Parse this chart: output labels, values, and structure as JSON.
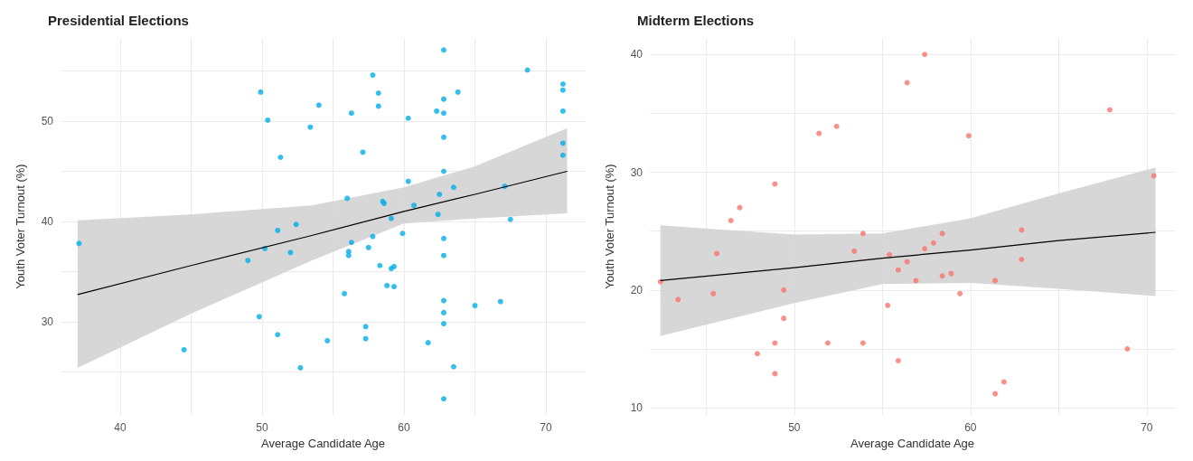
{
  "chart_data": [
    {
      "type": "scatter",
      "title": "Presidential Elections",
      "xlabel": "Average Candidate Age",
      "ylabel": "Youth Voter Turnout (%)",
      "xlim": [
        35.8,
        72.8
      ],
      "ylim": [
        20.7,
        58.3
      ],
      "xticks": [
        40,
        {
          "value": 45,
          "label": null
        },
        50,
        {
          "value": 55,
          "label": null
        },
        60,
        {
          "value": 65,
          "label": null
        },
        70
      ],
      "yticks": [
        {
          "value": 25,
          "label": null
        },
        30,
        {
          "value": 35,
          "label": null
        },
        40,
        {
          "value": 45,
          "label": null
        },
        50,
        {
          "value": 55,
          "label": null
        }
      ],
      "grid": true,
      "series": [
        {
          "marker": "circle",
          "color": "#00aee8",
          "x": [
            37.1,
            44.5,
            49.0,
            49.8,
            49.9,
            50.2,
            50.4,
            51.1,
            51.1,
            51.3,
            52.0,
            52.4,
            52.7,
            53.4,
            54.0,
            54.6,
            55.8,
            56.0,
            56.1,
            56.1,
            56.3,
            56.3,
            57.1,
            57.3,
            57.3,
            57.5,
            57.8,
            57.8,
            58.2,
            58.2,
            58.3,
            58.5,
            58.6,
            58.8,
            59.1,
            59.1,
            59.3,
            59.3,
            59.9,
            60.3,
            60.3,
            60.7,
            61.7,
            62.3,
            62.4,
            62.5,
            62.8,
            62.8,
            62.8,
            62.8,
            62.8,
            62.8,
            62.8,
            62.8,
            62.8,
            62.8,
            62.8,
            63.5,
            63.5,
            63.8,
            65.0,
            66.8,
            67.1,
            67.5,
            68.7,
            71.2,
            71.2,
            71.2,
            71.2,
            71.2
          ],
          "values": [
            37.8,
            27.2,
            36.1,
            30.5,
            52.9,
            37.3,
            50.1,
            28.7,
            39.1,
            46.4,
            36.9,
            39.7,
            25.4,
            49.4,
            51.6,
            28.1,
            32.8,
            42.3,
            37.0,
            36.6,
            37.9,
            50.8,
            46.9,
            28.3,
            29.5,
            37.4,
            54.6,
            38.5,
            52.8,
            51.5,
            35.6,
            42.0,
            41.8,
            33.6,
            40.3,
            35.3,
            35.5,
            33.5,
            38.8,
            50.3,
            44.0,
            41.6,
            27.9,
            51.0,
            40.7,
            42.7,
            57.1,
            52.2,
            50.8,
            48.4,
            45.0,
            38.3,
            36.6,
            32.1,
            30.9,
            29.8,
            22.3,
            43.4,
            25.5,
            52.9,
            31.6,
            32.0,
            43.5,
            40.2,
            55.1,
            53.7,
            53.1,
            51.0,
            47.8,
            46.6
          ]
        },
        {
          "type": "line",
          "marker": "none",
          "color": "#000000",
          "x": [
            37,
            45,
            53.5,
            60,
            65,
            71.5
          ],
          "values": [
            32.7,
            35.6,
            38.6,
            41.0,
            42.7,
            45.0
          ],
          "lower": [
            25.4,
            30.8,
            36.1,
            39.8,
            40.3,
            40.8
          ],
          "upper": [
            40.1,
            40.7,
            41.6,
            43.4,
            45.5,
            49.3
          ]
        }
      ]
    },
    {
      "type": "scatter",
      "title": "Midterm Elections",
      "xlabel": "Average Candidate Age",
      "ylabel": "Youth Voter Turnout (%)",
      "xlim": [
        41.8,
        71.6
      ],
      "ylim": [
        9.4,
        41.4
      ],
      "xticks": [
        {
          "value": 45,
          "label": null
        },
        50,
        {
          "value": 55,
          "label": null
        },
        60,
        {
          "value": 65,
          "label": null
        },
        70
      ],
      "yticks": [
        10,
        {
          "value": 15,
          "label": null
        },
        20,
        {
          "value": 25,
          "label": null
        },
        30,
        {
          "value": 35,
          "label": null
        },
        40
      ],
      "grid": true,
      "series": [
        {
          "marker": "circle",
          "color": "#f8766d",
          "x": [
            42.4,
            43.4,
            45.4,
            45.6,
            46.4,
            46.9,
            47.9,
            48.9,
            48.9,
            48.9,
            49.4,
            49.4,
            51.4,
            51.9,
            52.4,
            53.4,
            53.9,
            53.9,
            55.3,
            57.4,
            56.4,
            67.9,
            59.9,
            70.4,
            58.4,
            62.9,
            57.9,
            57.4,
            55.4,
            56.4,
            62.9,
            55.9,
            58.9,
            58.4,
            56.9,
            61.4,
            59.4,
            68.9,
            55.9,
            61.9,
            61.4
          ],
          "values": [
            20.7,
            19.2,
            19.7,
            23.1,
            25.9,
            27.0,
            14.6,
            29.0,
            15.5,
            12.9,
            20.0,
            17.6,
            33.3,
            15.5,
            33.9,
            23.3,
            24.8,
            15.5,
            18.7,
            40.0,
            37.6,
            35.3,
            33.1,
            29.7,
            24.8,
            25.1,
            24.0,
            23.5,
            23.0,
            22.4,
            22.6,
            21.7,
            21.4,
            21.2,
            20.8,
            20.8,
            19.7,
            15.0,
            14.0,
            12.2,
            11.2
          ]
        },
        {
          "type": "line",
          "marker": "none",
          "color": "#000000",
          "x": [
            42.4,
            50,
            55,
            60,
            65,
            70.5
          ],
          "values": [
            20.8,
            21.9,
            22.7,
            23.4,
            24.2,
            24.9
          ],
          "lower": [
            16.1,
            18.9,
            20.5,
            20.6,
            20.1,
            19.5
          ],
          "upper": [
            25.5,
            24.7,
            24.8,
            26.1,
            28.2,
            30.4
          ]
        }
      ]
    }
  ]
}
